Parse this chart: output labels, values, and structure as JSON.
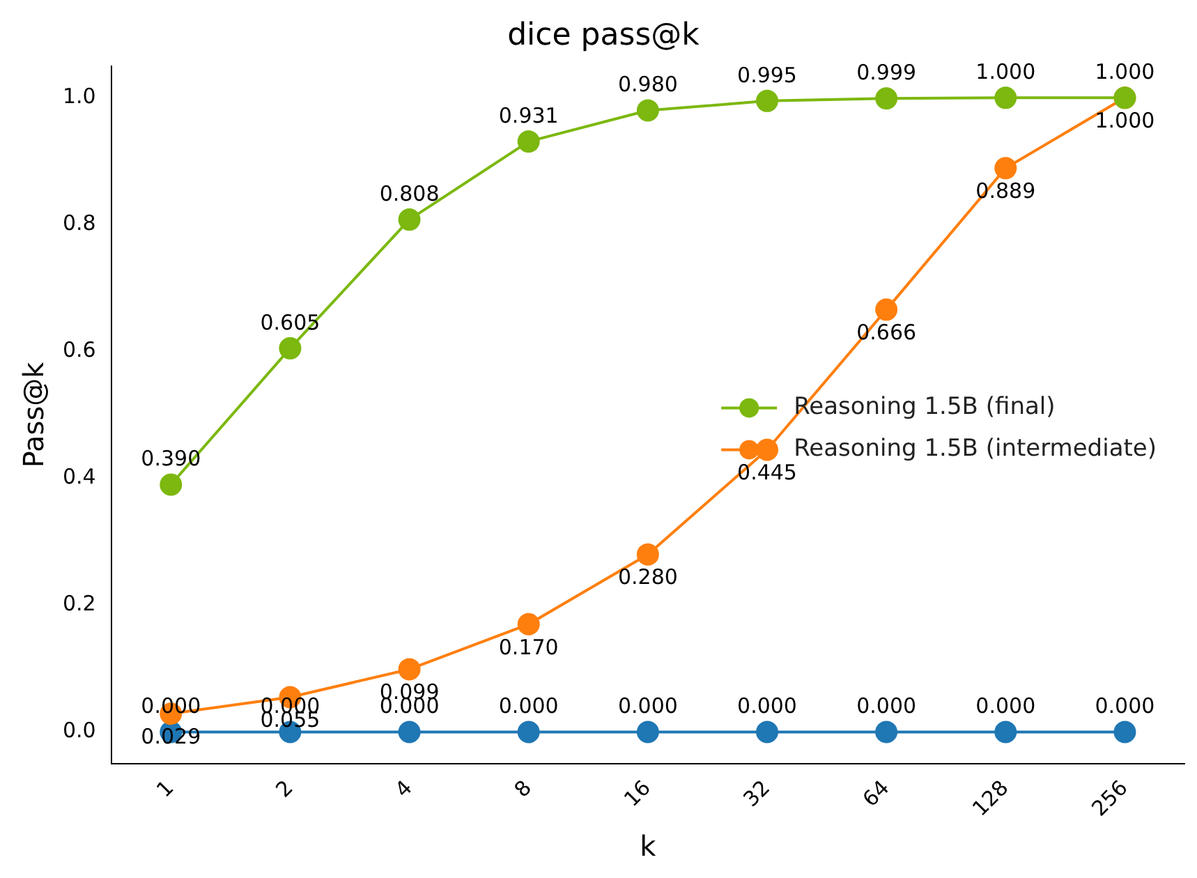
{
  "chart_data": {
    "type": "line",
    "title": "dice pass@k",
    "xlabel": "k",
    "ylabel": "Pass@k",
    "categories": [
      "1",
      "2",
      "4",
      "8",
      "16",
      "32",
      "64",
      "128",
      "256"
    ],
    "series": [
      {
        "name": "Reasoning 1.5B (final)",
        "color": "#7cb80f",
        "values": [
          0.39,
          0.605,
          0.808,
          0.931,
          0.98,
          0.995,
          0.999,
          1.0,
          1.0
        ],
        "value_labels": [
          "0.390",
          "0.605",
          "0.808",
          "0.931",
          "0.980",
          "0.995",
          "0.999",
          "1.000",
          "1.000"
        ]
      },
      {
        "name": "Reasoning 1.5B (intermediate)",
        "color": "#ff7f0e",
        "values": [
          0.029,
          0.055,
          0.099,
          0.17,
          0.28,
          0.445,
          0.666,
          0.889,
          1.0
        ],
        "value_labels": [
          "0.029",
          "0.055",
          "0.099",
          "0.170",
          "0.280",
          "0.445",
          "0.666",
          "0.889",
          "1.000"
        ]
      },
      {
        "color": "#1f77b4",
        "values": [
          0,
          0,
          0,
          0,
          0,
          0,
          0,
          0,
          0
        ],
        "value_labels": [
          "0.000",
          "0.000",
          "0.000",
          "0.000",
          "0.000",
          "0.000",
          "0.000",
          "0.000",
          "0.000"
        ]
      }
    ],
    "ylim": [
      -0.05,
      1.05
    ],
    "yticks": [
      {
        "value": 0,
        "label": "0.0"
      },
      {
        "value": 0.2,
        "label": "0.2"
      },
      {
        "value": 0.4,
        "label": "0.4"
      },
      {
        "value": 0.6,
        "label": "0.6"
      },
      {
        "value": 0.8,
        "label": "0.8"
      },
      {
        "value": 1,
        "label": "1.0"
      }
    ],
    "grid": false,
    "legend": "right",
    "marker": "circle",
    "line_style": "solid"
  }
}
